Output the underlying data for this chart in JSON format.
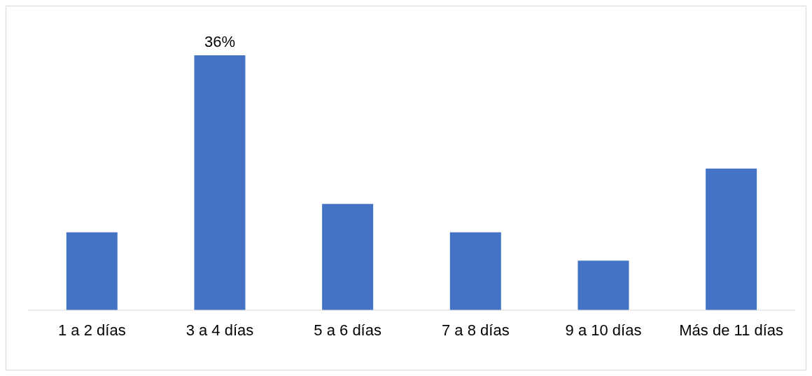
{
  "chart_data": {
    "type": "bar",
    "categories": [
      "1 a 2 días",
      "3 a 4 días",
      "5 a 6 días",
      "7 a 8 días",
      "9 a 10 días",
      "Más de 11 días"
    ],
    "values": [
      11,
      36,
      15,
      11,
      7,
      20
    ],
    "value_labels": [
      null,
      "36%",
      null,
      null,
      null,
      null
    ],
    "color": "#4472c4",
    "grid": false,
    "legend": false,
    "tick_labels": "x"
  }
}
